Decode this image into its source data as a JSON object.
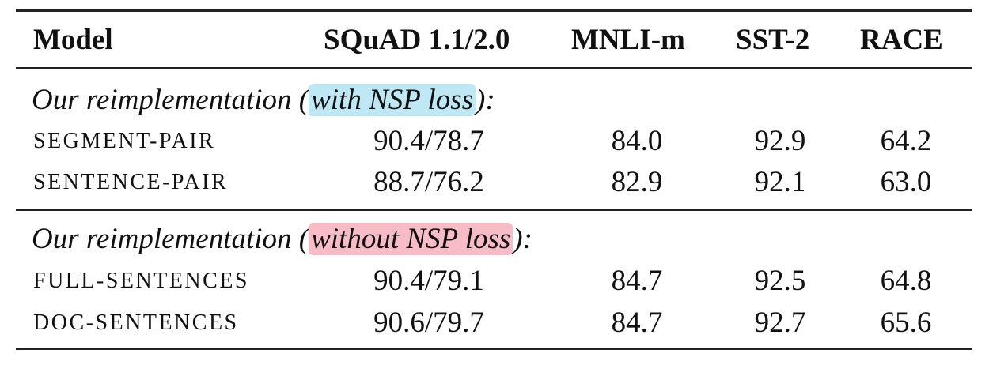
{
  "table": {
    "headers": [
      "Model",
      "SQuAD 1.1/2.0",
      "MNLI-m",
      "SST-2",
      "RACE"
    ],
    "groups": [
      {
        "title_prefix": "Our reimplementation (",
        "title_highlight": "with NSP loss",
        "title_suffix": "):",
        "highlight_color": "#bfe8f5",
        "rows": [
          {
            "model": "SEGMENT-PAIR",
            "squad": "90.4/78.7",
            "mnli": "84.0",
            "sst2": "92.9",
            "race": "64.2"
          },
          {
            "model": "SENTENCE-PAIR",
            "squad": "88.7/76.2",
            "mnli": "82.9",
            "sst2": "92.1",
            "race": "63.0"
          }
        ]
      },
      {
        "title_prefix": "Our reimplementation (",
        "title_highlight": "without NSP loss",
        "title_suffix": "):",
        "highlight_color": "#f7bcc6",
        "rows": [
          {
            "model": "FULL-SENTENCES",
            "squad": "90.4/79.1",
            "mnli": "84.7",
            "sst2": "92.5",
            "race": "64.8"
          },
          {
            "model": "DOC-SENTENCES",
            "squad": "90.6/79.7",
            "mnli": "84.7",
            "sst2": "92.7",
            "race": "65.6"
          }
        ]
      }
    ]
  }
}
